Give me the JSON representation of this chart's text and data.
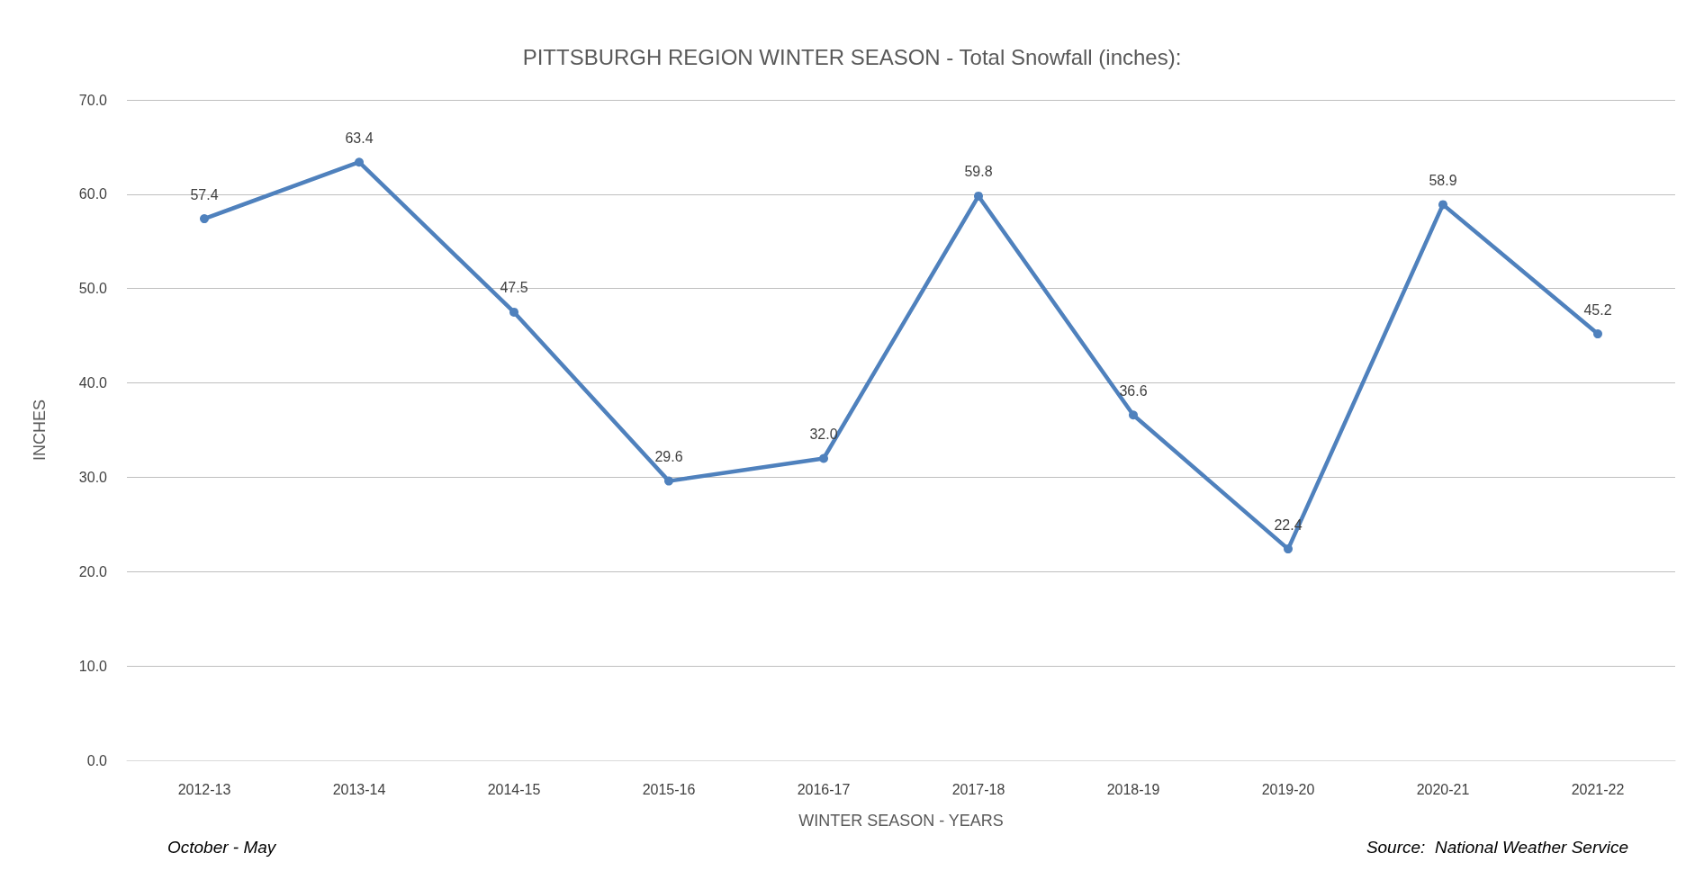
{
  "chart_data": {
    "type": "line",
    "title": "PITTSBURGH REGION WINTER SEASON - Total Snowfall (inches):",
    "xlabel": "WINTER SEASON - YEARS",
    "ylabel": "INCHES",
    "categories": [
      "2012-13",
      "2013-14",
      "2014-15",
      "2015-16",
      "2016-17",
      "2017-18",
      "2018-19",
      "2019-20",
      "2020-21",
      "2021-22"
    ],
    "series": [
      {
        "color": "#4f81bd",
        "values": [
          57.4,
          63.4,
          47.5,
          29.6,
          32.0,
          59.8,
          36.6,
          22.4,
          58.9,
          45.2
        ],
        "value_labels": [
          "57.4",
          "63.4",
          "47.5",
          "29.6",
          "32.0",
          "59.8",
          "36.6",
          "22.4",
          "58.9",
          "45.2"
        ]
      }
    ],
    "ylim": [
      0,
      70
    ],
    "yticks": [
      {
        "value": 0,
        "label": "0.0"
      },
      {
        "value": 10,
        "label": "10.0"
      },
      {
        "value": 20,
        "label": "20.0"
      },
      {
        "value": 30,
        "label": "30.0"
      },
      {
        "value": 40,
        "label": "40.0"
      },
      {
        "value": 50,
        "label": "50.0"
      },
      {
        "value": 60,
        "label": "60.0"
      },
      {
        "value": 70,
        "label": "70.0"
      }
    ],
    "grid": "y",
    "marker": "circle",
    "line_style": "solid",
    "annotations": [
      "October - May",
      "Source:  National Weather Service"
    ]
  }
}
